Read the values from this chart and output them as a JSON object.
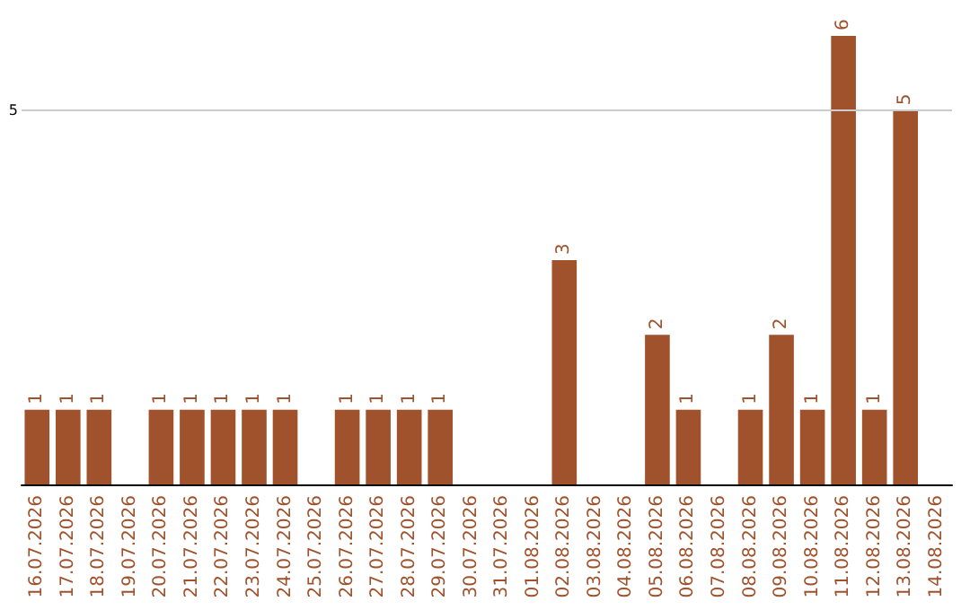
{
  "chart_data": {
    "type": "bar",
    "categories": [
      "16.07.2026",
      "17.07.2026",
      "18.07.2026",
      "19.07.2026",
      "20.07.2026",
      "21.07.2026",
      "22.07.2026",
      "23.07.2026",
      "24.07.2026",
      "25.07.2026",
      "26.07.2026",
      "27.07.2026",
      "28.07.2026",
      "29.07.2026",
      "30.07.2026",
      "31.07.2026",
      "01.08.2026",
      "02.08.2026",
      "03.08.2026",
      "04.08.2026",
      "05.08.2026",
      "06.08.2026",
      "07.08.2026",
      "08.08.2026",
      "09.08.2026",
      "10.08.2026",
      "11.08.2026",
      "12.08.2026",
      "13.08.2026",
      "14.08.2026"
    ],
    "values": [
      1,
      1,
      1,
      0,
      1,
      1,
      1,
      1,
      1,
      0,
      1,
      1,
      1,
      1,
      0,
      0,
      0,
      3,
      0,
      0,
      2,
      1,
      0,
      1,
      2,
      1,
      6,
      1,
      5,
      0
    ],
    "value_labels": [
      "1",
      "1",
      "1",
      null,
      "1",
      "1",
      "1",
      "1",
      "1",
      null,
      "1",
      "1",
      "1",
      "1",
      null,
      null,
      null,
      "3",
      null,
      null,
      "2",
      "1",
      null,
      "1",
      "2",
      "1",
      "6",
      "1",
      "5",
      null
    ],
    "color": "#a0522d",
    "ref_lines": [
      {
        "axis": "y",
        "value": 5,
        "label": "5",
        "color": "#cccccc"
      }
    ]
  }
}
